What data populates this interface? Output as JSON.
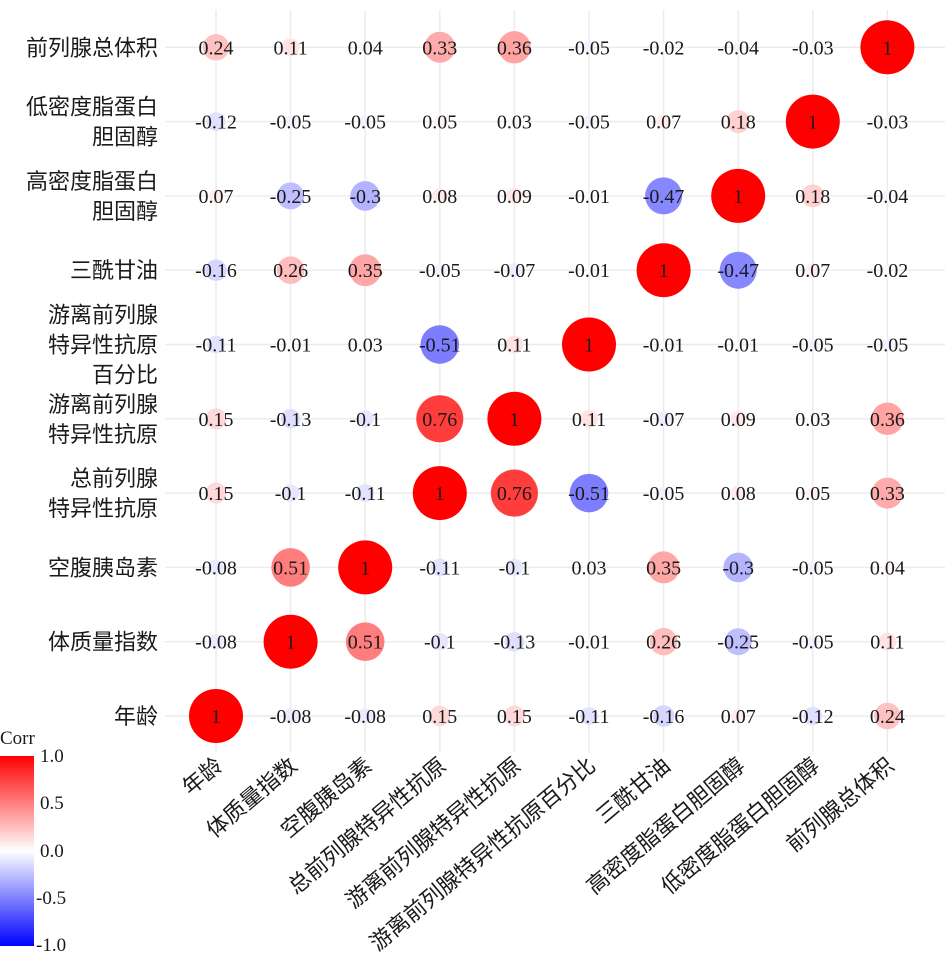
{
  "chart_data": {
    "type": "heatmap",
    "title": "",
    "xlabel": "",
    "ylabel": "",
    "variables": [
      "年龄",
      "体质量指数",
      "空腹胰岛素",
      "总前列腺特异性抗原",
      "游离前列腺特异性抗原",
      "游离前列腺特异性抗原百分比",
      "三酰甘油",
      "高密度脂蛋白胆固醇",
      "低密度脂蛋白胆固醇",
      "前列腺总体积"
    ],
    "row_labels": [
      [
        "年龄"
      ],
      [
        "体质量指数"
      ],
      [
        "空腹胰岛素"
      ],
      [
        "总前列腺",
        "特异性抗原"
      ],
      [
        "游离前列腺",
        "特异性抗原"
      ],
      [
        "游离前列腺",
        "特异性抗原",
        "百分比"
      ],
      [
        "三酰甘油"
      ],
      [
        "高密度脂蛋白",
        "胆固醇"
      ],
      [
        "低密度脂蛋白",
        "胆固醇"
      ],
      [
        "前列腺总体积"
      ]
    ],
    "matrix": [
      [
        1,
        -0.08,
        -0.08,
        0.15,
        0.15,
        -0.11,
        -0.16,
        0.07,
        -0.12,
        0.24
      ],
      [
        -0.08,
        1,
        0.51,
        -0.1,
        -0.13,
        -0.01,
        0.26,
        -0.25,
        -0.05,
        0.11
      ],
      [
        -0.08,
        0.51,
        1,
        -0.11,
        -0.1,
        0.03,
        0.35,
        -0.3,
        -0.05,
        0.04
      ],
      [
        0.15,
        -0.1,
        -0.11,
        1,
        0.76,
        -0.51,
        -0.05,
        0.08,
        0.05,
        0.33
      ],
      [
        0.15,
        -0.13,
        -0.1,
        0.76,
        1,
        0.11,
        -0.07,
        0.09,
        0.03,
        0.36
      ],
      [
        -0.11,
        -0.01,
        0.03,
        -0.51,
        0.11,
        1,
        -0.01,
        -0.01,
        -0.05,
        -0.05
      ],
      [
        -0.16,
        0.26,
        0.35,
        -0.05,
        -0.07,
        -0.01,
        1,
        -0.47,
        0.07,
        -0.02
      ],
      [
        0.07,
        -0.25,
        -0.3,
        0.08,
        0.09,
        -0.01,
        -0.47,
        1,
        0.18,
        -0.04
      ],
      [
        -0.12,
        -0.05,
        -0.05,
        0.05,
        0.03,
        -0.05,
        0.07,
        0.18,
        1,
        -0.03
      ],
      [
        0.24,
        0.11,
        0.04,
        0.33,
        0.36,
        -0.05,
        -0.02,
        -0.04,
        -0.03,
        1
      ]
    ],
    "legend": {
      "title": "Corr",
      "ticks": [
        "1.0",
        "0.5",
        "0.0",
        "-0.5",
        "-1.0"
      ],
      "range": [
        -1,
        1
      ],
      "low_color": "#0000ff",
      "mid_color": "#ffffff",
      "high_color": "#ff0000"
    },
    "grid": true
  }
}
